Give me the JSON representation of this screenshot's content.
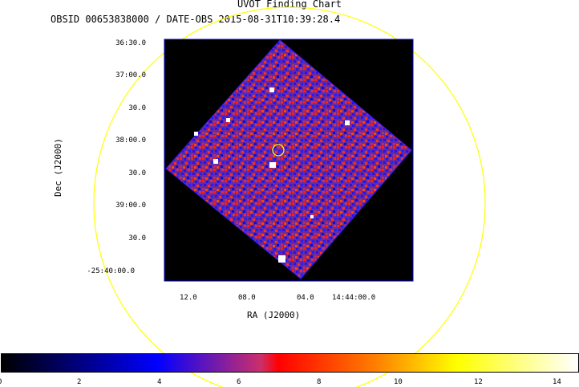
{
  "title": "UVOT Finding Chart",
  "subtitle": "OBSID 00653838000 / DATE-OBS 2015-08-31T10:39:28.4",
  "axes": {
    "ylabel": "Dec (J2000)",
    "xlabel": "RA (J2000)",
    "yticks": [
      "36:30.0",
      "37:00.0",
      "30.0",
      "38:00.0",
      "30.0",
      "39:00.0",
      "30.0",
      "-25:40:00.0"
    ],
    "xticks": [
      "12.0",
      "08.0",
      "04.0",
      "14:44:00.0"
    ]
  },
  "colorbar": {
    "ticks": [
      "0",
      "2",
      "4",
      "6",
      "8",
      "10",
      "12",
      "14"
    ],
    "range": [
      0,
      14.5
    ],
    "colors": [
      "#000000",
      "#0000ff",
      "#cc2f6a",
      "#ff0000",
      "#ff8000",
      "#ffff00",
      "#ffffff"
    ]
  },
  "colors": {
    "circle": "#ffff00",
    "image_background": "#000000",
    "image_border": "#0000cc"
  }
}
